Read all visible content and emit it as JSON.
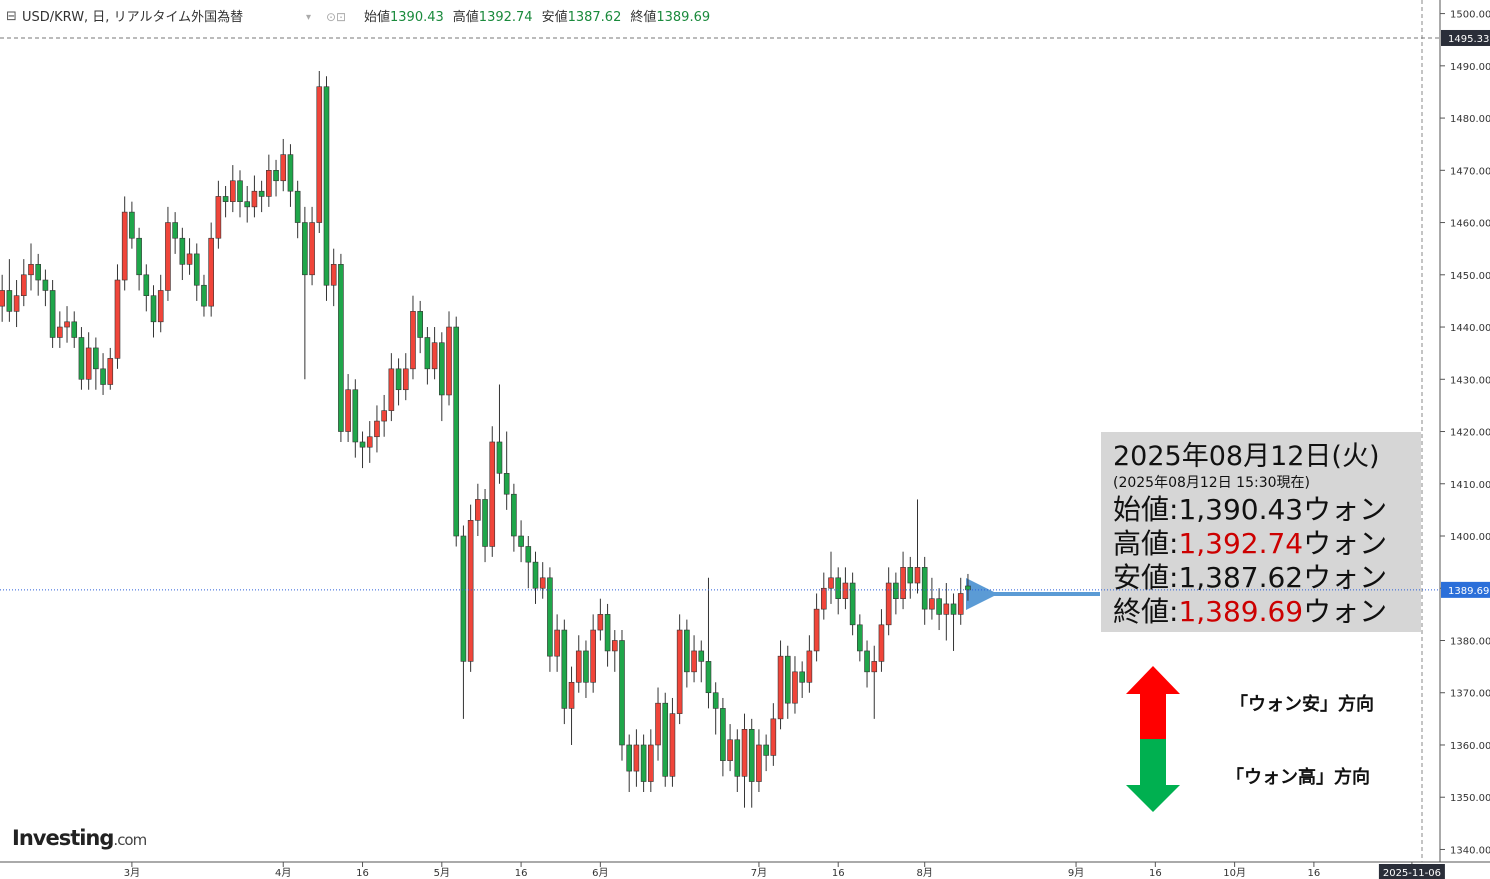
{
  "chart_data": {
    "type": "candlestick",
    "title": "USD/KRW, 日, リアルタイム外国為替",
    "header_labels": [
      "始値",
      "高値",
      "安値",
      "終値"
    ],
    "up_color": "#f0453a",
    "down_color": "#1fa64a",
    "ylim": [
      1337.6,
      1502.6
    ],
    "yticks": [
      {
        "value": 1340,
        "label": "1340.00"
      },
      {
        "value": 1350,
        "label": "1350.00"
      },
      {
        "value": 1360,
        "label": "1360.00"
      },
      {
        "value": 1370,
        "label": "1370.00"
      },
      {
        "value": 1380,
        "label": "1380.00"
      },
      {
        "value": 1390,
        "label": "1390.00"
      },
      {
        "value": 1400,
        "label": "1400.00"
      },
      {
        "value": 1410,
        "label": "1410.00"
      },
      {
        "value": 1420,
        "label": "1420.00"
      },
      {
        "value": 1430,
        "label": "1430.00"
      },
      {
        "value": 1440,
        "label": "1440.00"
      },
      {
        "value": 1450,
        "label": "1450.00"
      },
      {
        "value": 1460,
        "label": "1460.00"
      },
      {
        "value": 1470,
        "label": "1470.00"
      },
      {
        "value": 1480,
        "label": "1480.00"
      },
      {
        "value": 1490,
        "label": "1490.00"
      },
      {
        "value": 1500,
        "label": "1500.00"
      }
    ],
    "xlim": [
      -0.3,
      197
    ],
    "xticks": [
      {
        "value": 18,
        "label": "3月"
      },
      {
        "value": 39,
        "label": "4月"
      },
      {
        "value": 50,
        "label": "16"
      },
      {
        "value": 61,
        "label": "5月"
      },
      {
        "value": 72,
        "label": "16"
      },
      {
        "value": 83,
        "label": "6月"
      },
      {
        "value": 105,
        "label": "7月"
      },
      {
        "value": 116,
        "label": "16"
      },
      {
        "value": 128,
        "label": "8月"
      },
      {
        "value": 149,
        "label": "9月"
      },
      {
        "value": 160,
        "label": "16"
      },
      {
        "value": 171,
        "label": "10月"
      },
      {
        "value": 182,
        "label": "16"
      },
      {
        "value": 195.6,
        "label": "2025-11-06"
      }
    ],
    "marker_line": {
      "value": 1495.33,
      "label": "1495.33"
    },
    "ohlc": [
      [
        1444,
        1450,
        1441,
        1447
      ],
      [
        1447,
        1453,
        1441,
        1443
      ],
      [
        1443,
        1449,
        1440,
        1446
      ],
      [
        1446,
        1453,
        1444,
        1450
      ],
      [
        1450,
        1456,
        1447,
        1452
      ],
      [
        1452,
        1454,
        1446,
        1449
      ],
      [
        1449,
        1451,
        1444,
        1447
      ],
      [
        1447,
        1449,
        1436,
        1438
      ],
      [
        1438,
        1443,
        1436,
        1440
      ],
      [
        1440,
        1444,
        1437,
        1441
      ],
      [
        1441,
        1443,
        1436,
        1438
      ],
      [
        1438,
        1440,
        1428,
        1430
      ],
      [
        1430,
        1439,
        1428,
        1436
      ],
      [
        1436,
        1438,
        1428,
        1432
      ],
      [
        1432,
        1435,
        1427,
        1429
      ],
      [
        1429,
        1436,
        1428,
        1434
      ],
      [
        1434,
        1452,
        1432,
        1449
      ],
      [
        1449,
        1465,
        1447,
        1462
      ],
      [
        1462,
        1464,
        1455,
        1457
      ],
      [
        1457,
        1459,
        1447,
        1450
      ],
      [
        1450,
        1452,
        1443,
        1446
      ],
      [
        1446,
        1448,
        1438,
        1441
      ],
      [
        1441,
        1450,
        1439,
        1447
      ],
      [
        1447,
        1463,
        1445,
        1460
      ],
      [
        1460,
        1462,
        1454,
        1457
      ],
      [
        1457,
        1459,
        1449,
        1452
      ],
      [
        1452,
        1457,
        1450,
        1454
      ],
      [
        1454,
        1456,
        1445,
        1448
      ],
      [
        1448,
        1450,
        1442,
        1444
      ],
      [
        1444,
        1460,
        1442,
        1457
      ],
      [
        1457,
        1468,
        1455,
        1465
      ],
      [
        1465,
        1467,
        1461,
        1464
      ],
      [
        1464,
        1471,
        1462,
        1468
      ],
      [
        1468,
        1470,
        1461,
        1464
      ],
      [
        1464,
        1467,
        1460,
        1463
      ],
      [
        1463,
        1469,
        1461,
        1466
      ],
      [
        1466,
        1468,
        1462,
        1465
      ],
      [
        1465,
        1473,
        1463,
        1470
      ],
      [
        1470,
        1472,
        1465,
        1468
      ],
      [
        1468,
        1476,
        1466,
        1473
      ],
      [
        1473,
        1475,
        1463,
        1466
      ],
      [
        1466,
        1468,
        1457,
        1460
      ],
      [
        1460,
        1463,
        1430,
        1450
      ],
      [
        1450,
        1463,
        1448,
        1460
      ],
      [
        1460,
        1489,
        1458,
        1486
      ],
      [
        1486,
        1488,
        1445,
        1448
      ],
      [
        1448,
        1455,
        1444,
        1452
      ],
      [
        1452,
        1454,
        1418,
        1420
      ],
      [
        1420,
        1431,
        1418,
        1428
      ],
      [
        1428,
        1430,
        1415,
        1418
      ],
      [
        1418,
        1420,
        1413,
        1417
      ],
      [
        1417,
        1422,
        1414,
        1419
      ],
      [
        1419,
        1425,
        1416,
        1422
      ],
      [
        1422,
        1427,
        1419,
        1424
      ],
      [
        1424,
        1435,
        1422,
        1432
      ],
      [
        1432,
        1434,
        1425,
        1428
      ],
      [
        1428,
        1435,
        1426,
        1432
      ],
      [
        1432,
        1446,
        1430,
        1443
      ],
      [
        1443,
        1445,
        1435,
        1438
      ],
      [
        1438,
        1440,
        1429,
        1432
      ],
      [
        1432,
        1440,
        1430,
        1437
      ],
      [
        1437,
        1439,
        1422,
        1427
      ],
      [
        1427,
        1443,
        1425,
        1440
      ],
      [
        1440,
        1442,
        1398,
        1400
      ],
      [
        1400,
        1402,
        1365,
        1376
      ],
      [
        1376,
        1406,
        1374,
        1403
      ],
      [
        1403,
        1410,
        1400,
        1407
      ],
      [
        1407,
        1409,
        1395,
        1398
      ],
      [
        1398,
        1421,
        1396,
        1418
      ],
      [
        1418,
        1429,
        1410,
        1412
      ],
      [
        1412,
        1420,
        1405,
        1408
      ],
      [
        1408,
        1410,
        1397,
        1400
      ],
      [
        1400,
        1403,
        1395,
        1398
      ],
      [
        1398,
        1400,
        1390,
        1395
      ],
      [
        1395,
        1397,
        1387,
        1390
      ],
      [
        1390,
        1395,
        1388,
        1392
      ],
      [
        1392,
        1394,
        1374,
        1377
      ],
      [
        1377,
        1385,
        1374,
        1382
      ],
      [
        1382,
        1384,
        1364,
        1367
      ],
      [
        1367,
        1375,
        1360,
        1372
      ],
      [
        1372,
        1381,
        1370,
        1378
      ],
      [
        1378,
        1380,
        1369,
        1372
      ],
      [
        1372,
        1385,
        1370,
        1382
      ],
      [
        1382,
        1388,
        1380,
        1385
      ],
      [
        1385,
        1387,
        1375,
        1378
      ],
      [
        1378,
        1382,
        1374,
        1380
      ],
      [
        1380,
        1382,
        1357,
        1360
      ],
      [
        1360,
        1362,
        1351,
        1355
      ],
      [
        1355,
        1363,
        1352,
        1360
      ],
      [
        1360,
        1362,
        1351,
        1353
      ],
      [
        1353,
        1363,
        1351,
        1360
      ],
      [
        1360,
        1371,
        1357,
        1368
      ],
      [
        1368,
        1370,
        1352,
        1354
      ],
      [
        1354,
        1369,
        1352,
        1366
      ],
      [
        1366,
        1385,
        1364,
        1382
      ],
      [
        1382,
        1384,
        1371,
        1374
      ],
      [
        1374,
        1381,
        1372,
        1378
      ],
      [
        1378,
        1380,
        1372,
        1376
      ],
      [
        1376,
        1392,
        1367,
        1370
      ],
      [
        1370,
        1372,
        1362,
        1367
      ],
      [
        1367,
        1369,
        1354,
        1357
      ],
      [
        1357,
        1364,
        1355,
        1361
      ],
      [
        1361,
        1363,
        1351,
        1354
      ],
      [
        1354,
        1366,
        1348,
        1363
      ],
      [
        1363,
        1365,
        1348,
        1353
      ],
      [
        1353,
        1363,
        1351,
        1360
      ],
      [
        1360,
        1362,
        1355,
        1358
      ],
      [
        1358,
        1368,
        1356,
        1365
      ],
      [
        1365,
        1380,
        1363,
        1377
      ],
      [
        1377,
        1379,
        1365,
        1368
      ],
      [
        1368,
        1377,
        1366,
        1374
      ],
      [
        1374,
        1376,
        1369,
        1372
      ],
      [
        1372,
        1381,
        1370,
        1378
      ],
      [
        1378,
        1389,
        1376,
        1386
      ],
      [
        1386,
        1393,
        1384,
        1390
      ],
      [
        1390,
        1397,
        1387,
        1392
      ],
      [
        1392,
        1394,
        1385,
        1388
      ],
      [
        1388,
        1394,
        1386,
        1391
      ],
      [
        1391,
        1393,
        1381,
        1383
      ],
      [
        1383,
        1385,
        1376,
        1378
      ],
      [
        1378,
        1380,
        1371,
        1374
      ],
      [
        1374,
        1379,
        1365,
        1376
      ],
      [
        1376,
        1386,
        1374,
        1383
      ],
      [
        1383,
        1394,
        1381,
        1391
      ],
      [
        1391,
        1393,
        1385,
        1388
      ],
      [
        1388,
        1397,
        1386,
        1394
      ],
      [
        1394,
        1396,
        1388,
        1391
      ],
      [
        1391,
        1407,
        1389,
        1394
      ],
      [
        1394,
        1396,
        1383,
        1386
      ],
      [
        1386,
        1392,
        1384,
        1388
      ],
      [
        1388,
        1390,
        1382,
        1385
      ],
      [
        1385,
        1391,
        1380,
        1387
      ],
      [
        1387,
        1389,
        1378,
        1385
      ],
      [
        1385,
        1392,
        1383,
        1389
      ],
      [
        1390.43,
        1392.74,
        1387.62,
        1389.69
      ]
    ],
    "annotation": {
      "date": "2025年08月12日(火)",
      "asof": "(2025年08月12日 15:30現在)",
      "rows": [
        {
          "label": "始値:",
          "value": "1,390.43",
          "unit": "ウォン",
          "color": "#111111"
        },
        {
          "label": "高値:",
          "value": "1,392.74",
          "unit": "ウォン",
          "color": "#cc0000"
        },
        {
          "label": "安値:",
          "value": "1,387.62",
          "unit": "ウォン",
          "color": "#111111"
        },
        {
          "label": "終値:",
          "value": "1,389.69",
          "unit": "ウォン",
          "color": "#cc0000"
        }
      ]
    },
    "arrow_labels": [
      "「ウォン安」方向",
      "「ウォン高」方向"
    ],
    "logo": {
      "brand": "Investing",
      "suffix": ".com"
    }
  }
}
